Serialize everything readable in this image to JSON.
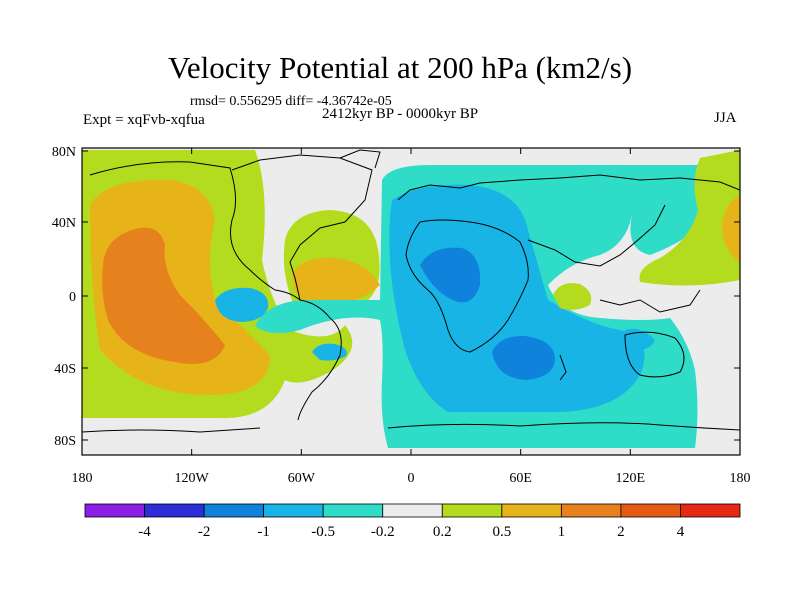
{
  "title": "Velocity Potential at 200 hPa (km2/s)",
  "stats": "rmsd= 0.556295 diff= -4.36742e-05",
  "experiment": "Expt = xqFvb-xqfua",
  "period": "2412kyr BP - 0000kyr BP",
  "season": "JJA",
  "lon_ticks": [
    "180",
    "120W",
    "60W",
    "0",
    "60E",
    "120E",
    "180"
  ],
  "lat_ticks": [
    "80N",
    "40N",
    "0",
    "40S",
    "80S"
  ],
  "colorbar": {
    "labels": [
      "-4",
      "-2",
      "-1",
      "-0.5",
      "-0.2",
      "0.2",
      "0.5",
      "1",
      "2",
      "4"
    ],
    "colors": [
      "#8c1ee6",
      "#2d2dd9",
      "#0f82dc",
      "#19b4e6",
      "#2fdcc8",
      "#ececec",
      "#b4dc1e",
      "#e6b419",
      "#e6821e",
      "#e65a14",
      "#e62814"
    ]
  },
  "field_colors": {
    "bg": "#ececec",
    "teal": "#2fdcc8",
    "cyan": "#19b4e6",
    "blue": "#0f82dc",
    "lime": "#b4dc1e",
    "yellow": "#e6b419",
    "orange": "#e6821e"
  }
}
